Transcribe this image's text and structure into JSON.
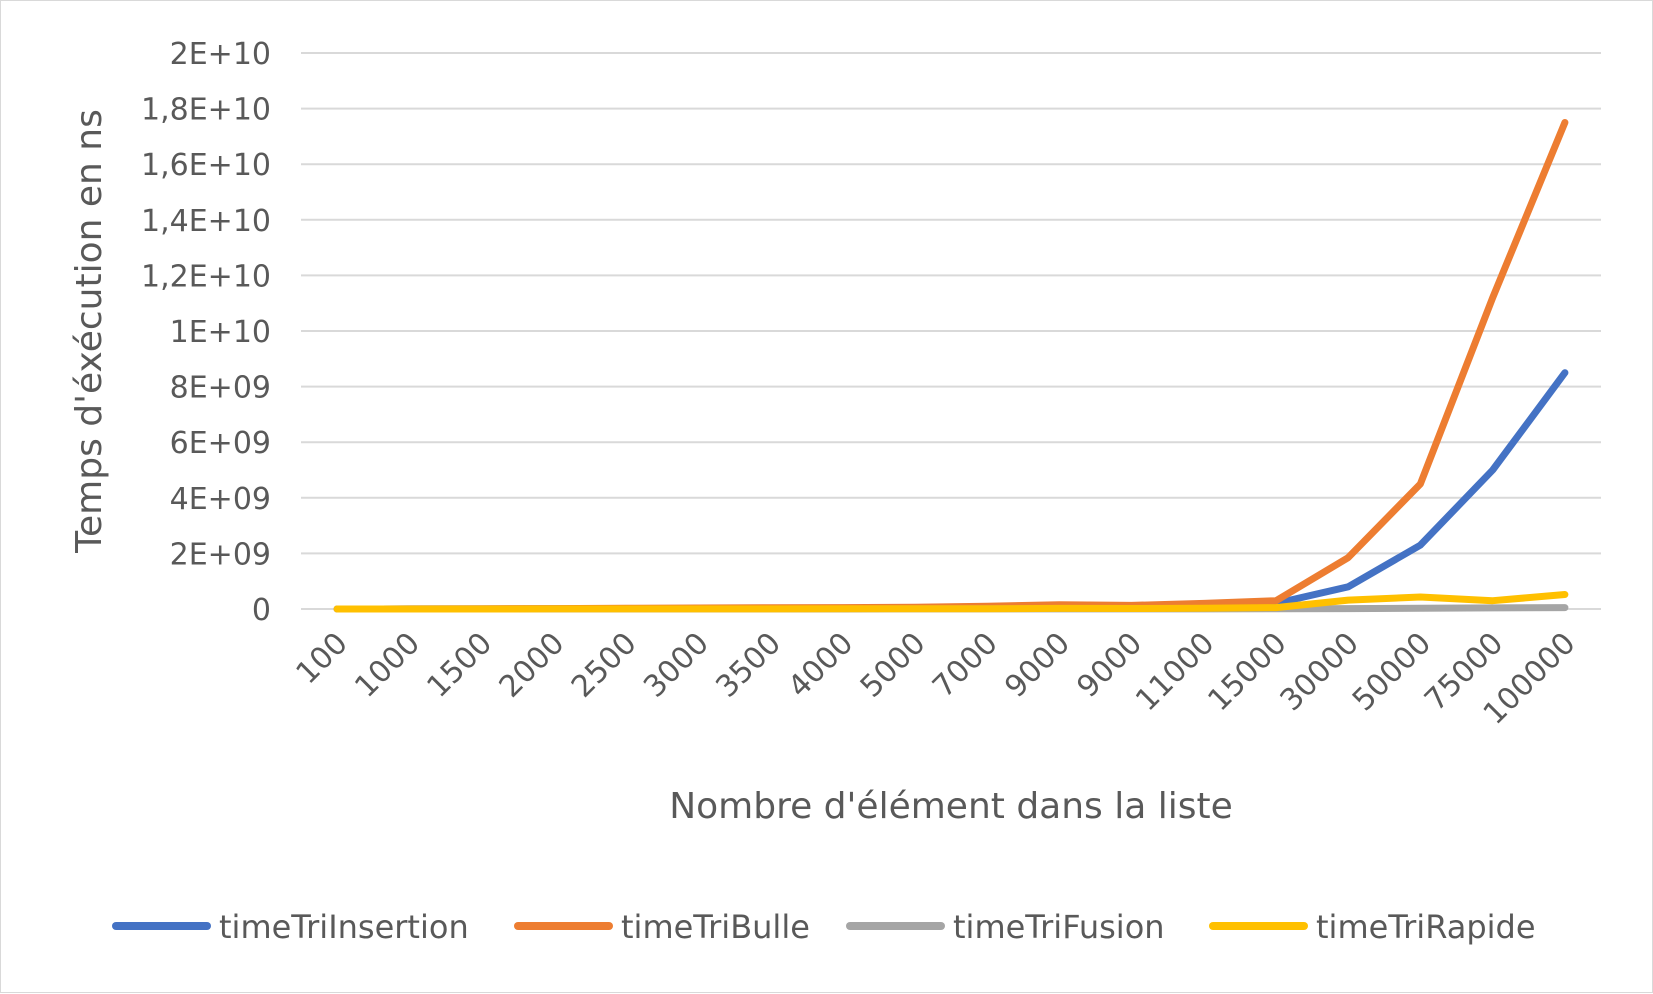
{
  "chart_data": {
    "type": "line",
    "title": "",
    "xlabel": "Nombre d'élément dans la liste",
    "ylabel": "Temps d'éxécution en ns",
    "ylim": [
      0,
      20000000000
    ],
    "y_ticks": [
      0,
      2000000000,
      4000000000,
      6000000000,
      8000000000,
      10000000000,
      12000000000,
      14000000000,
      16000000000,
      18000000000,
      20000000000
    ],
    "y_tick_labels": [
      "0",
      "2E+09",
      "4E+09",
      "6E+09",
      "8E+09",
      "1E+10",
      "1,2E+10",
      "1,4E+10",
      "1,6E+10",
      "1,8E+10",
      "2E+10"
    ],
    "categories": [
      "100",
      "1000",
      "1500",
      "2000",
      "2500",
      "3000",
      "3500",
      "4000",
      "5000",
      "7000",
      "9000",
      "9000",
      "11000",
      "15000",
      "30000",
      "50000",
      "75000",
      "100000"
    ],
    "grid": true,
    "legend_position": "bottom",
    "series": [
      {
        "name": "timeTriInsertion",
        "color": "#4472C4",
        "values": [
          0,
          2000000,
          4000000,
          7000000,
          12000000,
          15000000,
          20000000,
          25000000,
          35000000,
          60000000,
          80000000,
          75000000,
          110000000,
          200000000,
          800000000,
          2300000000,
          5000000000,
          8500000000
        ]
      },
      {
        "name": "timeTriBulle",
        "color": "#ED7D31",
        "values": [
          0,
          5000000,
          10000000,
          15000000,
          25000000,
          35000000,
          45000000,
          50000000,
          60000000,
          100000000,
          150000000,
          130000000,
          200000000,
          300000000,
          1850000000,
          4500000000,
          11200000000,
          17500000000
        ]
      },
      {
        "name": "timeTriFusion",
        "color": "#A5A5A5",
        "values": [
          0,
          500000,
          700000,
          900000,
          1000000,
          1200000,
          1400000,
          1500000,
          2000000,
          3000000,
          4000000,
          4000000,
          5000000,
          7000000,
          15000000,
          25000000,
          38000000,
          50000000
        ]
      },
      {
        "name": "timeTriRapide",
        "color": "#FFC000",
        "values": [
          0,
          1000000,
          1500000,
          2000000,
          3000000,
          4000000,
          5000000,
          6000000,
          8000000,
          12000000,
          20000000,
          18000000,
          30000000,
          50000000,
          320000000,
          430000000,
          300000000,
          520000000
        ]
      }
    ]
  }
}
